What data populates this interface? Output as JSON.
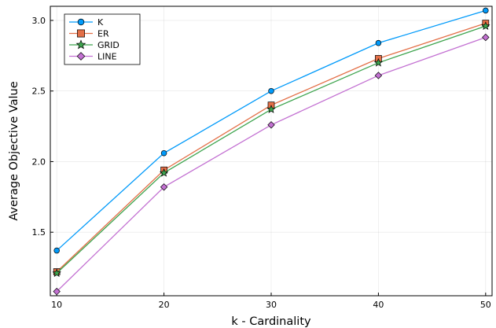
{
  "chart_data": {
    "type": "line",
    "title": "",
    "xlabel": "k - Cardinality",
    "ylabel": "Average Objective Value",
    "x": [
      10,
      20,
      30,
      40,
      50
    ],
    "xlim": [
      9.4,
      50.6
    ],
    "ylim": [
      1.05,
      3.1
    ],
    "xticks": [
      "10",
      "20",
      "30",
      "40",
      "50"
    ],
    "xtick_values": [
      10,
      20,
      30,
      40,
      50
    ],
    "yticks": [
      "1.5",
      "2.0",
      "2.5",
      "3.0"
    ],
    "ytick_values": [
      1.5,
      2.0,
      2.5,
      3.0
    ],
    "grid": true,
    "legend_position": "top-left",
    "series": [
      {
        "name": "K",
        "color": "#009AFA",
        "marker": "circle",
        "values": [
          1.37,
          2.06,
          2.5,
          2.84,
          3.07
        ]
      },
      {
        "name": "ER",
        "color": "#E36F47",
        "marker": "square",
        "values": [
          1.22,
          1.94,
          2.4,
          2.73,
          2.98
        ]
      },
      {
        "name": "GRID",
        "color": "#3EA44E",
        "marker": "star",
        "values": [
          1.21,
          1.92,
          2.37,
          2.7,
          2.96
        ]
      },
      {
        "name": "LINE",
        "color": "#C371D2",
        "marker": "diamond",
        "values": [
          1.08,
          1.82,
          2.26,
          2.61,
          2.88
        ]
      }
    ]
  }
}
